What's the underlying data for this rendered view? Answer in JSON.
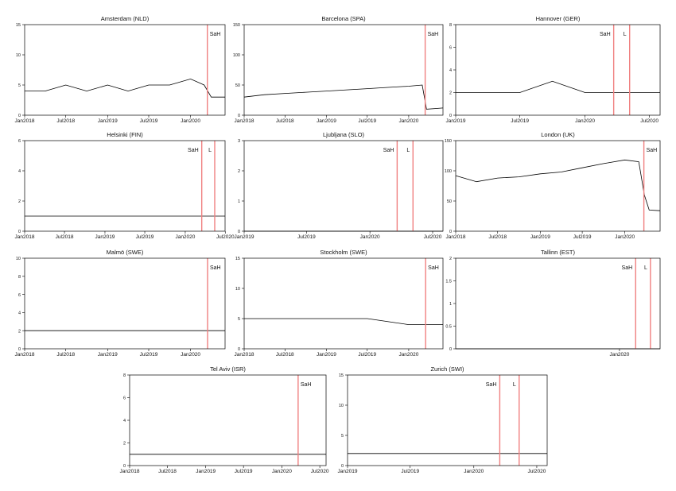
{
  "figure": {
    "background": "#ffffff",
    "line_color": "#000000",
    "marker_color": "#f08080"
  },
  "chart_data": [
    {
      "type": "line",
      "title": "Amsterdam (NLD)",
      "x_ticks": [
        "Jan2018",
        "Jul2018",
        "Jan2019",
        "Jul2019",
        "Jan2020"
      ],
      "xlim": [
        "2018-01-01",
        "2020-06-01"
      ],
      "ylim": [
        0,
        15
      ],
      "y_ticks": [
        0,
        5,
        10,
        15
      ],
      "markers": [
        {
          "date": "2020-03-15",
          "label": "SaH"
        }
      ],
      "series": [
        {
          "dates": [
            "2018-01-01",
            "2018-04-01",
            "2018-07-01",
            "2018-10-01",
            "2019-01-01",
            "2019-04-01",
            "2019-07-01",
            "2019-10-01",
            "2020-01-01",
            "2020-03-01",
            "2020-04-01",
            "2020-06-01"
          ],
          "values": [
            4,
            4,
            5,
            4,
            5,
            4,
            5,
            5,
            6,
            5,
            3,
            3
          ]
        }
      ]
    },
    {
      "type": "line",
      "title": "Barcelona (SPA)",
      "x_ticks": [
        "Jan2018",
        "Jul2018",
        "Jan2019",
        "Jul2019",
        "Jan2020"
      ],
      "xlim": [
        "2018-01-01",
        "2020-06-01"
      ],
      "ylim": [
        0,
        150
      ],
      "y_ticks": [
        0,
        50,
        100,
        150
      ],
      "markers": [
        {
          "date": "2020-03-14",
          "label": "SaH"
        }
      ],
      "series": [
        {
          "dates": [
            "2018-01-01",
            "2018-04-01",
            "2018-07-01",
            "2018-10-01",
            "2019-01-01",
            "2019-04-01",
            "2019-07-01",
            "2019-10-01",
            "2020-01-01",
            "2020-03-01",
            "2020-03-20",
            "2020-06-01"
          ],
          "values": [
            30,
            34,
            36,
            38,
            40,
            42,
            44,
            46,
            48,
            50,
            10,
            12
          ]
        }
      ]
    },
    {
      "type": "line",
      "title": "Hannover (GER)",
      "x_ticks": [
        "Jan2019",
        "Jul2019",
        "Jan2020",
        "Jul2020"
      ],
      "xlim": [
        "2019-01-01",
        "2020-07-31"
      ],
      "ylim": [
        0,
        8
      ],
      "y_ticks": [
        0,
        2,
        4,
        6,
        8
      ],
      "markers": [
        {
          "date": "2020-03-22",
          "label": "SaH"
        },
        {
          "date": "2020-05-06",
          "label": "L"
        }
      ],
      "series": [
        {
          "dates": [
            "2019-01-01",
            "2019-04-01",
            "2019-07-01",
            "2019-10-01",
            "2020-01-01",
            "2020-03-01",
            "2020-05-01",
            "2020-07-31"
          ],
          "values": [
            2,
            2,
            2,
            3,
            2,
            2,
            2,
            2
          ]
        }
      ]
    },
    {
      "type": "line",
      "title": "Helsinki (FIN)",
      "x_ticks": [
        "Jan2018",
        "Jul2018",
        "Jan2019",
        "Jul2019",
        "Jan2020",
        "Jul2020"
      ],
      "xlim": [
        "2018-01-01",
        "2020-06-30"
      ],
      "ylim": [
        0,
        6
      ],
      "y_ticks": [
        0,
        2,
        4,
        6
      ],
      "markers": [
        {
          "date": "2020-03-16",
          "label": "SaH"
        },
        {
          "date": "2020-05-14",
          "label": "L"
        }
      ],
      "series": [
        {
          "dates": [
            "2018-01-01",
            "2018-07-01",
            "2019-01-01",
            "2019-07-01",
            "2020-01-01",
            "2020-06-30"
          ],
          "values": [
            1,
            1,
            1,
            1,
            1,
            1
          ]
        }
      ]
    },
    {
      "type": "line",
      "title": "Ljubljana (SLO)",
      "x_ticks": [
        "Jan2019",
        "Jul2019",
        "Jan2020",
        "Jul2020"
      ],
      "xlim": [
        "2019-01-01",
        "2020-07-31"
      ],
      "ylim": [
        0,
        3
      ],
      "y_ticks": [
        0,
        1,
        2,
        3
      ],
      "markers": [
        {
          "date": "2020-03-20",
          "label": "SaH"
        },
        {
          "date": "2020-05-05",
          "label": "L"
        }
      ],
      "series": [
        {
          "dates": [
            "2019-01-01",
            "2019-07-01",
            "2020-01-01",
            "2020-07-31"
          ],
          "values": [
            0,
            0,
            0,
            0
          ]
        }
      ]
    },
    {
      "type": "line",
      "title": "London (UK)",
      "x_ticks": [
        "Jan2018",
        "Jul2018",
        "Jan2019",
        "Jul2019",
        "Jan2020"
      ],
      "xlim": [
        "2018-01-01",
        "2020-06-01"
      ],
      "ylim": [
        0,
        150
      ],
      "y_ticks": [
        0,
        50,
        100,
        150
      ],
      "markers": [
        {
          "date": "2020-03-23",
          "label": "SaH"
        }
      ],
      "series": [
        {
          "dates": [
            "2018-01-01",
            "2018-04-01",
            "2018-07-01",
            "2018-10-01",
            "2019-01-01",
            "2019-04-01",
            "2019-07-01",
            "2019-10-01",
            "2020-01-01",
            "2020-03-01",
            "2020-03-25",
            "2020-04-15",
            "2020-06-01"
          ],
          "values": [
            92,
            82,
            88,
            90,
            95,
            98,
            105,
            112,
            118,
            115,
            60,
            35,
            34
          ]
        }
      ]
    },
    {
      "type": "line",
      "title": "Malmö (SWE)",
      "x_ticks": [
        "Jan2018",
        "Jul2018",
        "Jan2019",
        "Jul2019",
        "Jan2020"
      ],
      "xlim": [
        "2018-01-01",
        "2020-06-01"
      ],
      "ylim": [
        0,
        10
      ],
      "y_ticks": [
        0,
        2,
        4,
        6,
        8,
        10
      ],
      "markers": [
        {
          "date": "2020-03-16",
          "label": "SaH"
        }
      ],
      "series": [
        {
          "dates": [
            "2018-01-01",
            "2018-07-01",
            "2019-01-01",
            "2019-07-01",
            "2020-01-01",
            "2020-06-01"
          ],
          "values": [
            2,
            2,
            2,
            2,
            2,
            2
          ]
        }
      ]
    },
    {
      "type": "line",
      "title": "Stockholm (SWE)",
      "x_ticks": [
        "Jan2018",
        "Jul2018",
        "Jan2019",
        "Jul2019",
        "Jan2020"
      ],
      "xlim": [
        "2018-01-01",
        "2020-06-01"
      ],
      "ylim": [
        0,
        15
      ],
      "y_ticks": [
        0,
        5,
        10,
        15
      ],
      "markers": [
        {
          "date": "2020-03-16",
          "label": "SaH"
        }
      ],
      "series": [
        {
          "dates": [
            "2018-01-01",
            "2018-07-01",
            "2019-01-01",
            "2019-07-01",
            "2020-01-01",
            "2020-06-01"
          ],
          "values": [
            5,
            5,
            5,
            5,
            4,
            4
          ]
        }
      ]
    },
    {
      "type": "line",
      "title": "Tallinn (EST)",
      "x_ticks": [
        "Jan2020"
      ],
      "xlim": [
        "2018-01-01",
        "2020-06-30"
      ],
      "ylim": [
        0,
        2
      ],
      "y_ticks": [
        0,
        0.5,
        1,
        1.5,
        2
      ],
      "markers": [
        {
          "date": "2020-03-13",
          "label": "SaH"
        },
        {
          "date": "2020-05-18",
          "label": "L"
        }
      ],
      "series": [
        {
          "dates": [
            "2018-01-01",
            "2019-01-01",
            "2020-01-01",
            "2020-06-30"
          ],
          "values": [
            0,
            0,
            0,
            0
          ]
        }
      ]
    },
    {
      "type": "line",
      "title": "Tel Aviv (ISR)",
      "x_ticks": [
        "Jan2018",
        "Jul2018",
        "Jan2019",
        "Jul2019",
        "Jan2020",
        "Jul2020"
      ],
      "xlim": [
        "2018-01-01",
        "2020-07-31"
      ],
      "ylim": [
        0,
        8
      ],
      "y_ticks": [
        0,
        2,
        4,
        6,
        8
      ],
      "markers": [
        {
          "date": "2020-03-19",
          "label": "SaH"
        }
      ],
      "series": [
        {
          "dates": [
            "2018-01-01",
            "2018-07-01",
            "2019-01-01",
            "2019-07-01",
            "2020-01-01",
            "2020-07-31"
          ],
          "values": [
            1,
            1,
            1,
            1,
            1,
            1
          ]
        }
      ]
    },
    {
      "type": "line",
      "title": "Zurich (SWI)",
      "x_ticks": [
        "Jan2019",
        "Jul2019",
        "Jan2020",
        "Jul2020"
      ],
      "xlim": [
        "2019-01-01",
        "2020-07-31"
      ],
      "ylim": [
        0,
        15
      ],
      "y_ticks": [
        0,
        5,
        10,
        15
      ],
      "markers": [
        {
          "date": "2020-03-16",
          "label": "SaH"
        },
        {
          "date": "2020-05-11",
          "label": "L"
        }
      ],
      "series": [
        {
          "dates": [
            "2019-01-01",
            "2019-07-01",
            "2020-01-01",
            "2020-07-31"
          ],
          "values": [
            2,
            2,
            2,
            2
          ]
        }
      ]
    }
  ]
}
